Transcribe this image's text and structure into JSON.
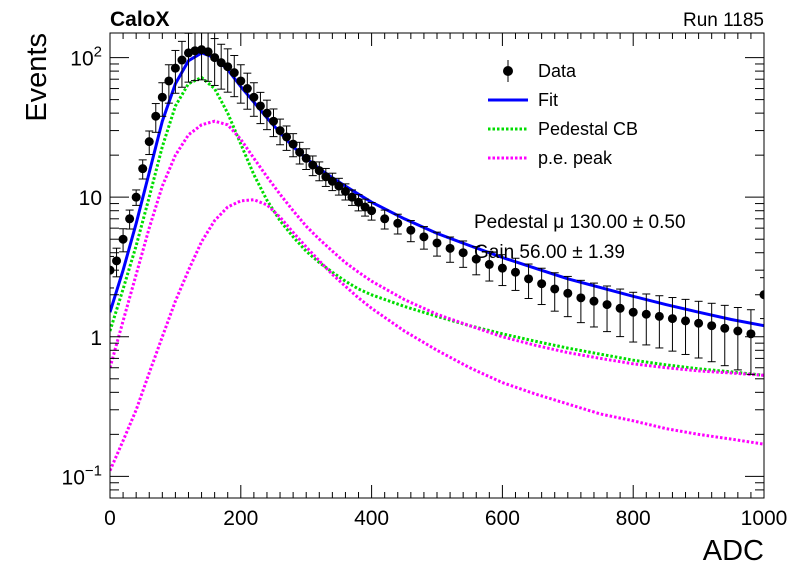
{
  "header": {
    "left": "CaloX",
    "right": "Run 1185"
  },
  "annotations": [
    "Pedestal μ 130.00 ± 0.50",
    "Gain 56.00 ± 1.39"
  ],
  "chart_data": {
    "type": "scatter",
    "xlabel": "ADC",
    "ylabel": "Events",
    "xlim": [
      0,
      1000
    ],
    "ylim": [
      0.07,
      150
    ],
    "log_y": true,
    "grid": false,
    "legend_position": "top-right",
    "x_ticks": [
      0,
      200,
      400,
      600,
      800,
      1000
    ],
    "y_ticks": [
      {
        "value": 0.1,
        "base": "10",
        "exp": "−1"
      },
      {
        "value": 1,
        "label": "1"
      },
      {
        "value": 10,
        "label": "10"
      },
      {
        "value": 100,
        "base": "10",
        "exp": "2"
      }
    ],
    "legend": [
      {
        "label": "Data",
        "style": "marker",
        "color": "#000000"
      },
      {
        "label": "Fit",
        "style": "solid",
        "color": "#0000ff"
      },
      {
        "label": "Pedestal CB",
        "style": "dotted",
        "color": "#00dd00"
      },
      {
        "label": "p.e. peak",
        "style": "dotted",
        "color": "#ff00ff"
      }
    ],
    "series": [
      {
        "name": "Data",
        "type": "points",
        "color": "#000000",
        "x": [
          0,
          10,
          20,
          30,
          40,
          50,
          60,
          70,
          80,
          90,
          100,
          110,
          120,
          130,
          140,
          150,
          160,
          170,
          180,
          190,
          200,
          210,
          220,
          230,
          240,
          250,
          260,
          270,
          280,
          290,
          300,
          310,
          320,
          330,
          340,
          350,
          360,
          370,
          380,
          390,
          400,
          420,
          440,
          460,
          480,
          500,
          520,
          540,
          560,
          580,
          600,
          620,
          640,
          660,
          680,
          700,
          720,
          740,
          760,
          780,
          800,
          820,
          840,
          860,
          880,
          900,
          920,
          940,
          960,
          980,
          1000
        ],
        "y": [
          3,
          3.5,
          5,
          7,
          10,
          16,
          25,
          38,
          52,
          68,
          84,
          96,
          108,
          112,
          114,
          110,
          100,
          92,
          86,
          78,
          68,
          60,
          52,
          45,
          40,
          35,
          30,
          27,
          24,
          21,
          19,
          17,
          15.5,
          14,
          13,
          12,
          11,
          10,
          9.2,
          8.5,
          8,
          7,
          6.5,
          5.8,
          5.2,
          4.7,
          4.3,
          4,
          3.6,
          3.3,
          3.1,
          2.9,
          2.6,
          2.4,
          2.2,
          2.05,
          1.9,
          1.8,
          1.7,
          1.6,
          1.5,
          1.45,
          1.4,
          1.35,
          1.3,
          1.25,
          1.2,
          1.15,
          1.1,
          1.05,
          2
        ]
      },
      {
        "name": "Fit",
        "type": "line",
        "color": "#0000ff",
        "x": [
          0,
          20,
          40,
          60,
          80,
          100,
          120,
          140,
          160,
          180,
          200,
          220,
          240,
          260,
          280,
          300,
          320,
          340,
          360,
          380,
          400,
          450,
          500,
          550,
          600,
          650,
          700,
          750,
          800,
          850,
          900,
          950,
          1000
        ],
        "y": [
          1.5,
          3,
          6.5,
          15,
          35,
          65,
          95,
          108,
          100,
          82,
          62,
          48,
          37,
          29,
          23,
          19,
          16,
          13.8,
          12,
          10.5,
          9.2,
          7,
          5.5,
          4.5,
          3.7,
          3.1,
          2.6,
          2.25,
          1.95,
          1.7,
          1.5,
          1.33,
          1.2
        ]
      },
      {
        "name": "Pedestal CB",
        "type": "line",
        "color": "#00dd00",
        "x": [
          0,
          20,
          40,
          60,
          80,
          100,
          120,
          140,
          160,
          180,
          200,
          220,
          240,
          260,
          280,
          300,
          320,
          340,
          360,
          380,
          400,
          450,
          500,
          550,
          600,
          650,
          700,
          750,
          800,
          850,
          900,
          950,
          1000
        ],
        "y": [
          1.1,
          2.2,
          4.5,
          10,
          23,
          45,
          65,
          72,
          60,
          40,
          24,
          14.5,
          9.5,
          6.8,
          5.2,
          4.1,
          3.4,
          2.9,
          2.5,
          2.2,
          2,
          1.65,
          1.4,
          1.2,
          1.05,
          0.93,
          0.83,
          0.75,
          0.68,
          0.63,
          0.59,
          0.56,
          0.53
        ]
      },
      {
        "name": "p.e. peak",
        "type": "line",
        "color": "#ff00ff",
        "x": [
          0,
          20,
          40,
          60,
          80,
          100,
          120,
          140,
          160,
          180,
          200,
          220,
          240,
          260,
          280,
          300,
          320,
          340,
          360,
          380,
          400,
          450,
          500,
          550,
          600,
          650,
          700,
          750,
          800,
          850,
          900,
          950,
          1000
        ],
        "y": [
          0.6,
          1.3,
          2.8,
          6,
          12,
          20,
          28,
          33,
          35,
          33,
          26,
          19,
          14,
          10.5,
          8,
          6.2,
          5,
          4.1,
          3.4,
          2.9,
          2.5,
          1.85,
          1.45,
          1.2,
          1,
          0.87,
          0.77,
          0.7,
          0.64,
          0.6,
          0.57,
          0.55,
          0.53
        ]
      },
      {
        "name": "p.e. peak",
        "type": "line",
        "color": "#ff00ff",
        "x": [
          0,
          20,
          40,
          60,
          80,
          100,
          120,
          140,
          160,
          180,
          200,
          220,
          240,
          260,
          280,
          300,
          320,
          340,
          360,
          380,
          400,
          450,
          500,
          550,
          600,
          650,
          700,
          750,
          800,
          850,
          900,
          950,
          1000
        ],
        "y": [
          0.11,
          0.18,
          0.3,
          0.55,
          1,
          1.8,
          3,
          4.8,
          6.8,
          8.5,
          9.4,
          9.6,
          8.8,
          7.2,
          5.6,
          4.4,
          3.5,
          2.8,
          2.3,
          1.9,
          1.6,
          1.1,
          0.8,
          0.6,
          0.47,
          0.39,
          0.33,
          0.28,
          0.25,
          0.22,
          0.2,
          0.185,
          0.17
        ]
      }
    ]
  }
}
